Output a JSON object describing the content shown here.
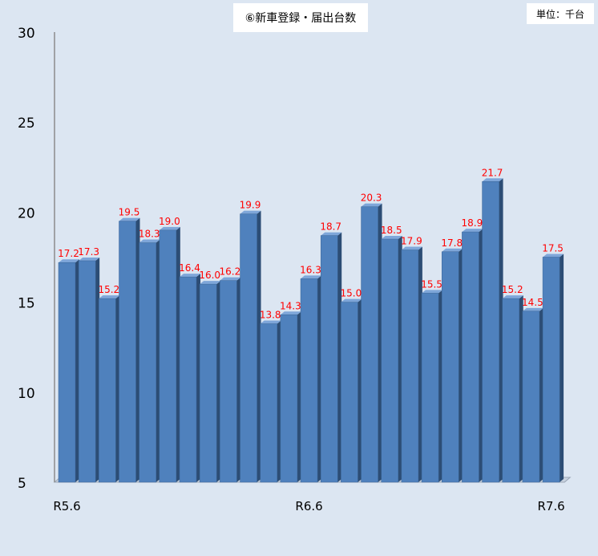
{
  "chart_data": {
    "type": "bar",
    "title": "⑥新車登録・届出台数",
    "unit_label": "単位：千台",
    "values": [
      17.2,
      17.3,
      15.2,
      19.5,
      18.3,
      19.0,
      16.4,
      16.0,
      16.2,
      19.9,
      13.8,
      14.3,
      16.3,
      18.7,
      15.0,
      20.3,
      18.5,
      17.9,
      15.5,
      17.8,
      18.9,
      21.7,
      15.2,
      14.5,
      17.5
    ],
    "x_tick_labels": [
      {
        "index": 0,
        "label": "R5.6"
      },
      {
        "index": 12,
        "label": "R6.6"
      },
      {
        "index": 24,
        "label": "R7.6"
      }
    ],
    "y_ticks": [
      5,
      10,
      15,
      20,
      25,
      30
    ],
    "ylim": [
      5,
      30
    ],
    "grid": false,
    "legend": "none",
    "colors": {
      "bar_front": "#4f81bd",
      "bar_side": "#2c4d75",
      "bar_top": "#7ea6d9",
      "data_label": "#ff0000",
      "background": "#dce6f2"
    }
  }
}
